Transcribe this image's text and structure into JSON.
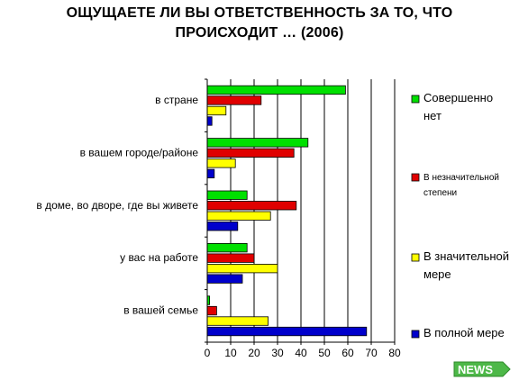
{
  "title": {
    "line1": "ОЩУЩАЕТЕ ЛИ ВЫ ОТВЕТСТВЕННОСТЬ ЗА ТО, ЧТО",
    "line2": "ПРОИСХОДИТ … (2006)"
  },
  "logo": {
    "text": "NEWS",
    "icon": "news-logo"
  },
  "chart_data": {
    "type": "bar",
    "orientation": "horizontal",
    "categories": [
      "в стране",
      "в вашем городе/районе",
      "в доме, во дворе, где вы живете",
      "у вас на работе",
      "в вашей семье"
    ],
    "series": [
      {
        "name": "Совершенно нет",
        "color": "#00e000",
        "values": [
          59,
          43,
          17,
          17,
          1
        ]
      },
      {
        "name": "В незначительной степени",
        "color": "#e00000",
        "values": [
          23,
          37,
          38,
          20,
          4
        ]
      },
      {
        "name": "В значительной мере",
        "color": "#ffff00",
        "values": [
          8,
          12,
          27,
          30,
          26
        ]
      },
      {
        "name": "В полной мере",
        "color": "#0000cc",
        "values": [
          2,
          3,
          13,
          15,
          68
        ]
      }
    ],
    "xlim": [
      0,
      80
    ],
    "xticks": [
      0,
      10,
      20,
      30,
      40,
      50,
      60,
      70,
      80
    ],
    "grid": true,
    "legend_position": "right"
  }
}
